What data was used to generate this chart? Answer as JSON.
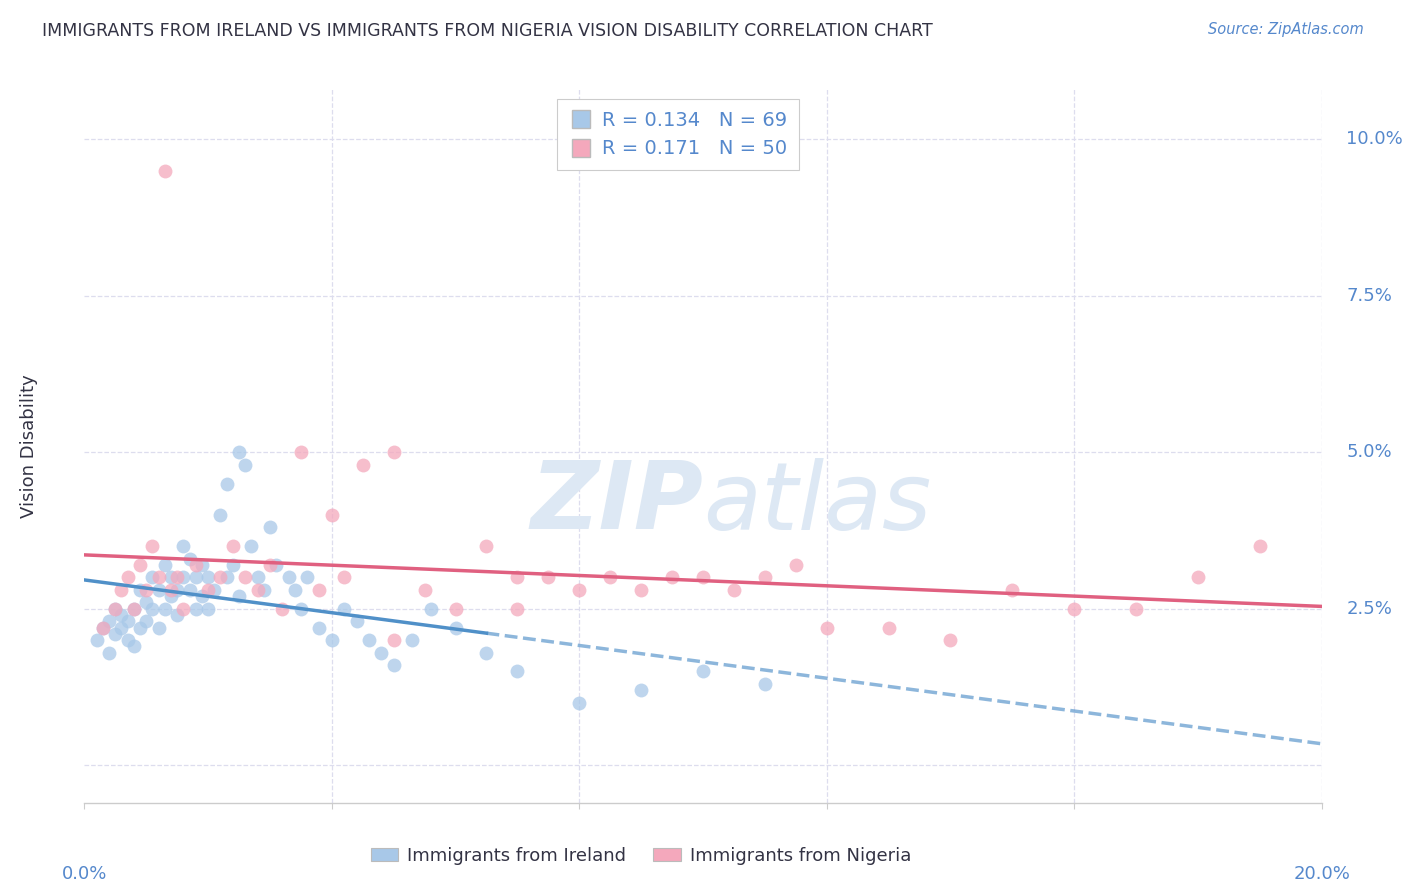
{
  "title": "IMMIGRANTS FROM IRELAND VS IMMIGRANTS FROM NIGERIA VISION DISABILITY CORRELATION CHART",
  "source": "Source: ZipAtlas.com",
  "ylabel": "Vision Disability",
  "ytick_vals": [
    0.0,
    0.025,
    0.05,
    0.075,
    0.1
  ],
  "ytick_labels": [
    "",
    "2.5%",
    "5.0%",
    "7.5%",
    "10.0%"
  ],
  "xtick_vals": [
    0.0,
    0.04,
    0.08,
    0.12,
    0.16,
    0.2
  ],
  "xlim": [
    0.0,
    0.2
  ],
  "ylim": [
    -0.006,
    0.108
  ],
  "ireland_R": 0.134,
  "ireland_N": 69,
  "nigeria_R": 0.171,
  "nigeria_N": 50,
  "ireland_color": "#a8c8e8",
  "nigeria_color": "#f4a8bc",
  "ireland_line_color": "#5090c8",
  "nigeria_line_color": "#e06080",
  "grid_color": "#ddddee",
  "text_color": "#333344",
  "blue_color": "#5588cc",
  "watermark_color": "#dde8f4",
  "ireland_x": [
    0.002,
    0.003,
    0.004,
    0.004,
    0.005,
    0.005,
    0.006,
    0.006,
    0.007,
    0.007,
    0.008,
    0.008,
    0.009,
    0.009,
    0.01,
    0.01,
    0.011,
    0.011,
    0.012,
    0.012,
    0.013,
    0.013,
    0.014,
    0.014,
    0.015,
    0.015,
    0.016,
    0.016,
    0.017,
    0.017,
    0.018,
    0.018,
    0.019,
    0.019,
    0.02,
    0.02,
    0.021,
    0.022,
    0.023,
    0.023,
    0.024,
    0.025,
    0.025,
    0.026,
    0.027,
    0.028,
    0.029,
    0.03,
    0.031,
    0.033,
    0.034,
    0.035,
    0.036,
    0.038,
    0.04,
    0.042,
    0.044,
    0.046,
    0.048,
    0.05,
    0.053,
    0.056,
    0.06,
    0.065,
    0.07,
    0.08,
    0.09,
    0.1,
    0.11
  ],
  "ireland_y": [
    0.02,
    0.022,
    0.018,
    0.023,
    0.021,
    0.025,
    0.022,
    0.024,
    0.02,
    0.023,
    0.019,
    0.025,
    0.022,
    0.028,
    0.023,
    0.026,
    0.025,
    0.03,
    0.022,
    0.028,
    0.025,
    0.032,
    0.027,
    0.03,
    0.024,
    0.028,
    0.03,
    0.035,
    0.028,
    0.033,
    0.025,
    0.03,
    0.027,
    0.032,
    0.025,
    0.03,
    0.028,
    0.04,
    0.03,
    0.045,
    0.032,
    0.05,
    0.027,
    0.048,
    0.035,
    0.03,
    0.028,
    0.038,
    0.032,
    0.03,
    0.028,
    0.025,
    0.03,
    0.022,
    0.02,
    0.025,
    0.023,
    0.02,
    0.018,
    0.016,
    0.02,
    0.025,
    0.022,
    0.018,
    0.015,
    0.01,
    0.012,
    0.015,
    0.013
  ],
  "nigeria_x": [
    0.003,
    0.005,
    0.006,
    0.007,
    0.008,
    0.009,
    0.01,
    0.011,
    0.012,
    0.013,
    0.014,
    0.015,
    0.016,
    0.018,
    0.02,
    0.022,
    0.024,
    0.026,
    0.028,
    0.03,
    0.032,
    0.035,
    0.038,
    0.04,
    0.042,
    0.045,
    0.05,
    0.055,
    0.06,
    0.065,
    0.07,
    0.075,
    0.08,
    0.085,
    0.09,
    0.095,
    0.1,
    0.105,
    0.11,
    0.115,
    0.12,
    0.13,
    0.14,
    0.15,
    0.16,
    0.17,
    0.18,
    0.19,
    0.07,
    0.05
  ],
  "nigeria_y": [
    0.022,
    0.025,
    0.028,
    0.03,
    0.025,
    0.032,
    0.028,
    0.035,
    0.03,
    0.095,
    0.028,
    0.03,
    0.025,
    0.032,
    0.028,
    0.03,
    0.035,
    0.03,
    0.028,
    0.032,
    0.025,
    0.05,
    0.028,
    0.04,
    0.03,
    0.048,
    0.05,
    0.028,
    0.025,
    0.035,
    0.03,
    0.03,
    0.028,
    0.03,
    0.028,
    0.03,
    0.03,
    0.028,
    0.03,
    0.032,
    0.022,
    0.022,
    0.02,
    0.028,
    0.025,
    0.025,
    0.03,
    0.035,
    0.025,
    0.02
  ]
}
